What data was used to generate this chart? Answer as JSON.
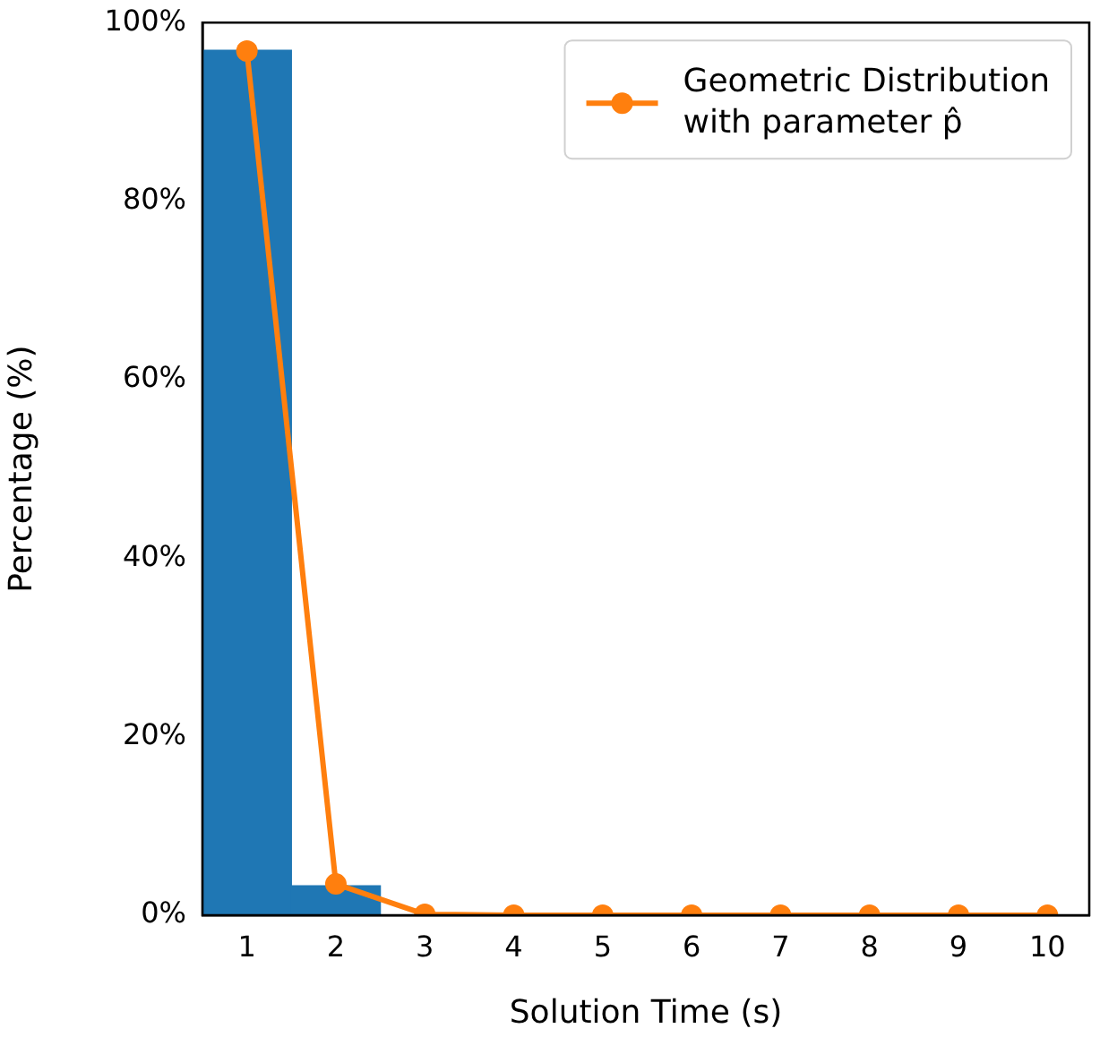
{
  "chart_data": {
    "type": "histogram",
    "xlabel": "Solution Time (s)",
    "ylabel": "Percentage (%)",
    "bins": [
      0.5,
      1.5,
      2.5
    ],
    "values": [
      96.9,
      3.3
    ],
    "color": "#1f77b4",
    "series": [
      {
        "type": "line",
        "name": "Geometric Distribution with parameter p̂",
        "color": "#ff7f0e",
        "x": [
          1,
          2,
          3,
          4,
          5,
          6,
          7,
          8,
          9,
          10
        ],
        "values": [
          96.8,
          3.5,
          0.1,
          0,
          0,
          0,
          0,
          0,
          0,
          0
        ],
        "marker": "circle"
      }
    ],
    "xlim": [
      0.5,
      10.47
    ],
    "xticks": [
      1,
      2,
      3,
      4,
      5,
      6,
      7,
      8,
      9,
      10
    ],
    "ylim": [
      0,
      100
    ],
    "yticks": [
      {
        "value": 0,
        "label": "0%"
      },
      {
        "value": 20,
        "label": "20%"
      },
      {
        "value": 40,
        "label": "40%"
      },
      {
        "value": 60,
        "label": "60%"
      },
      {
        "value": 80,
        "label": "80%"
      },
      {
        "value": 100,
        "label": "100%"
      }
    ],
    "grid": false,
    "legend": "top right"
  }
}
